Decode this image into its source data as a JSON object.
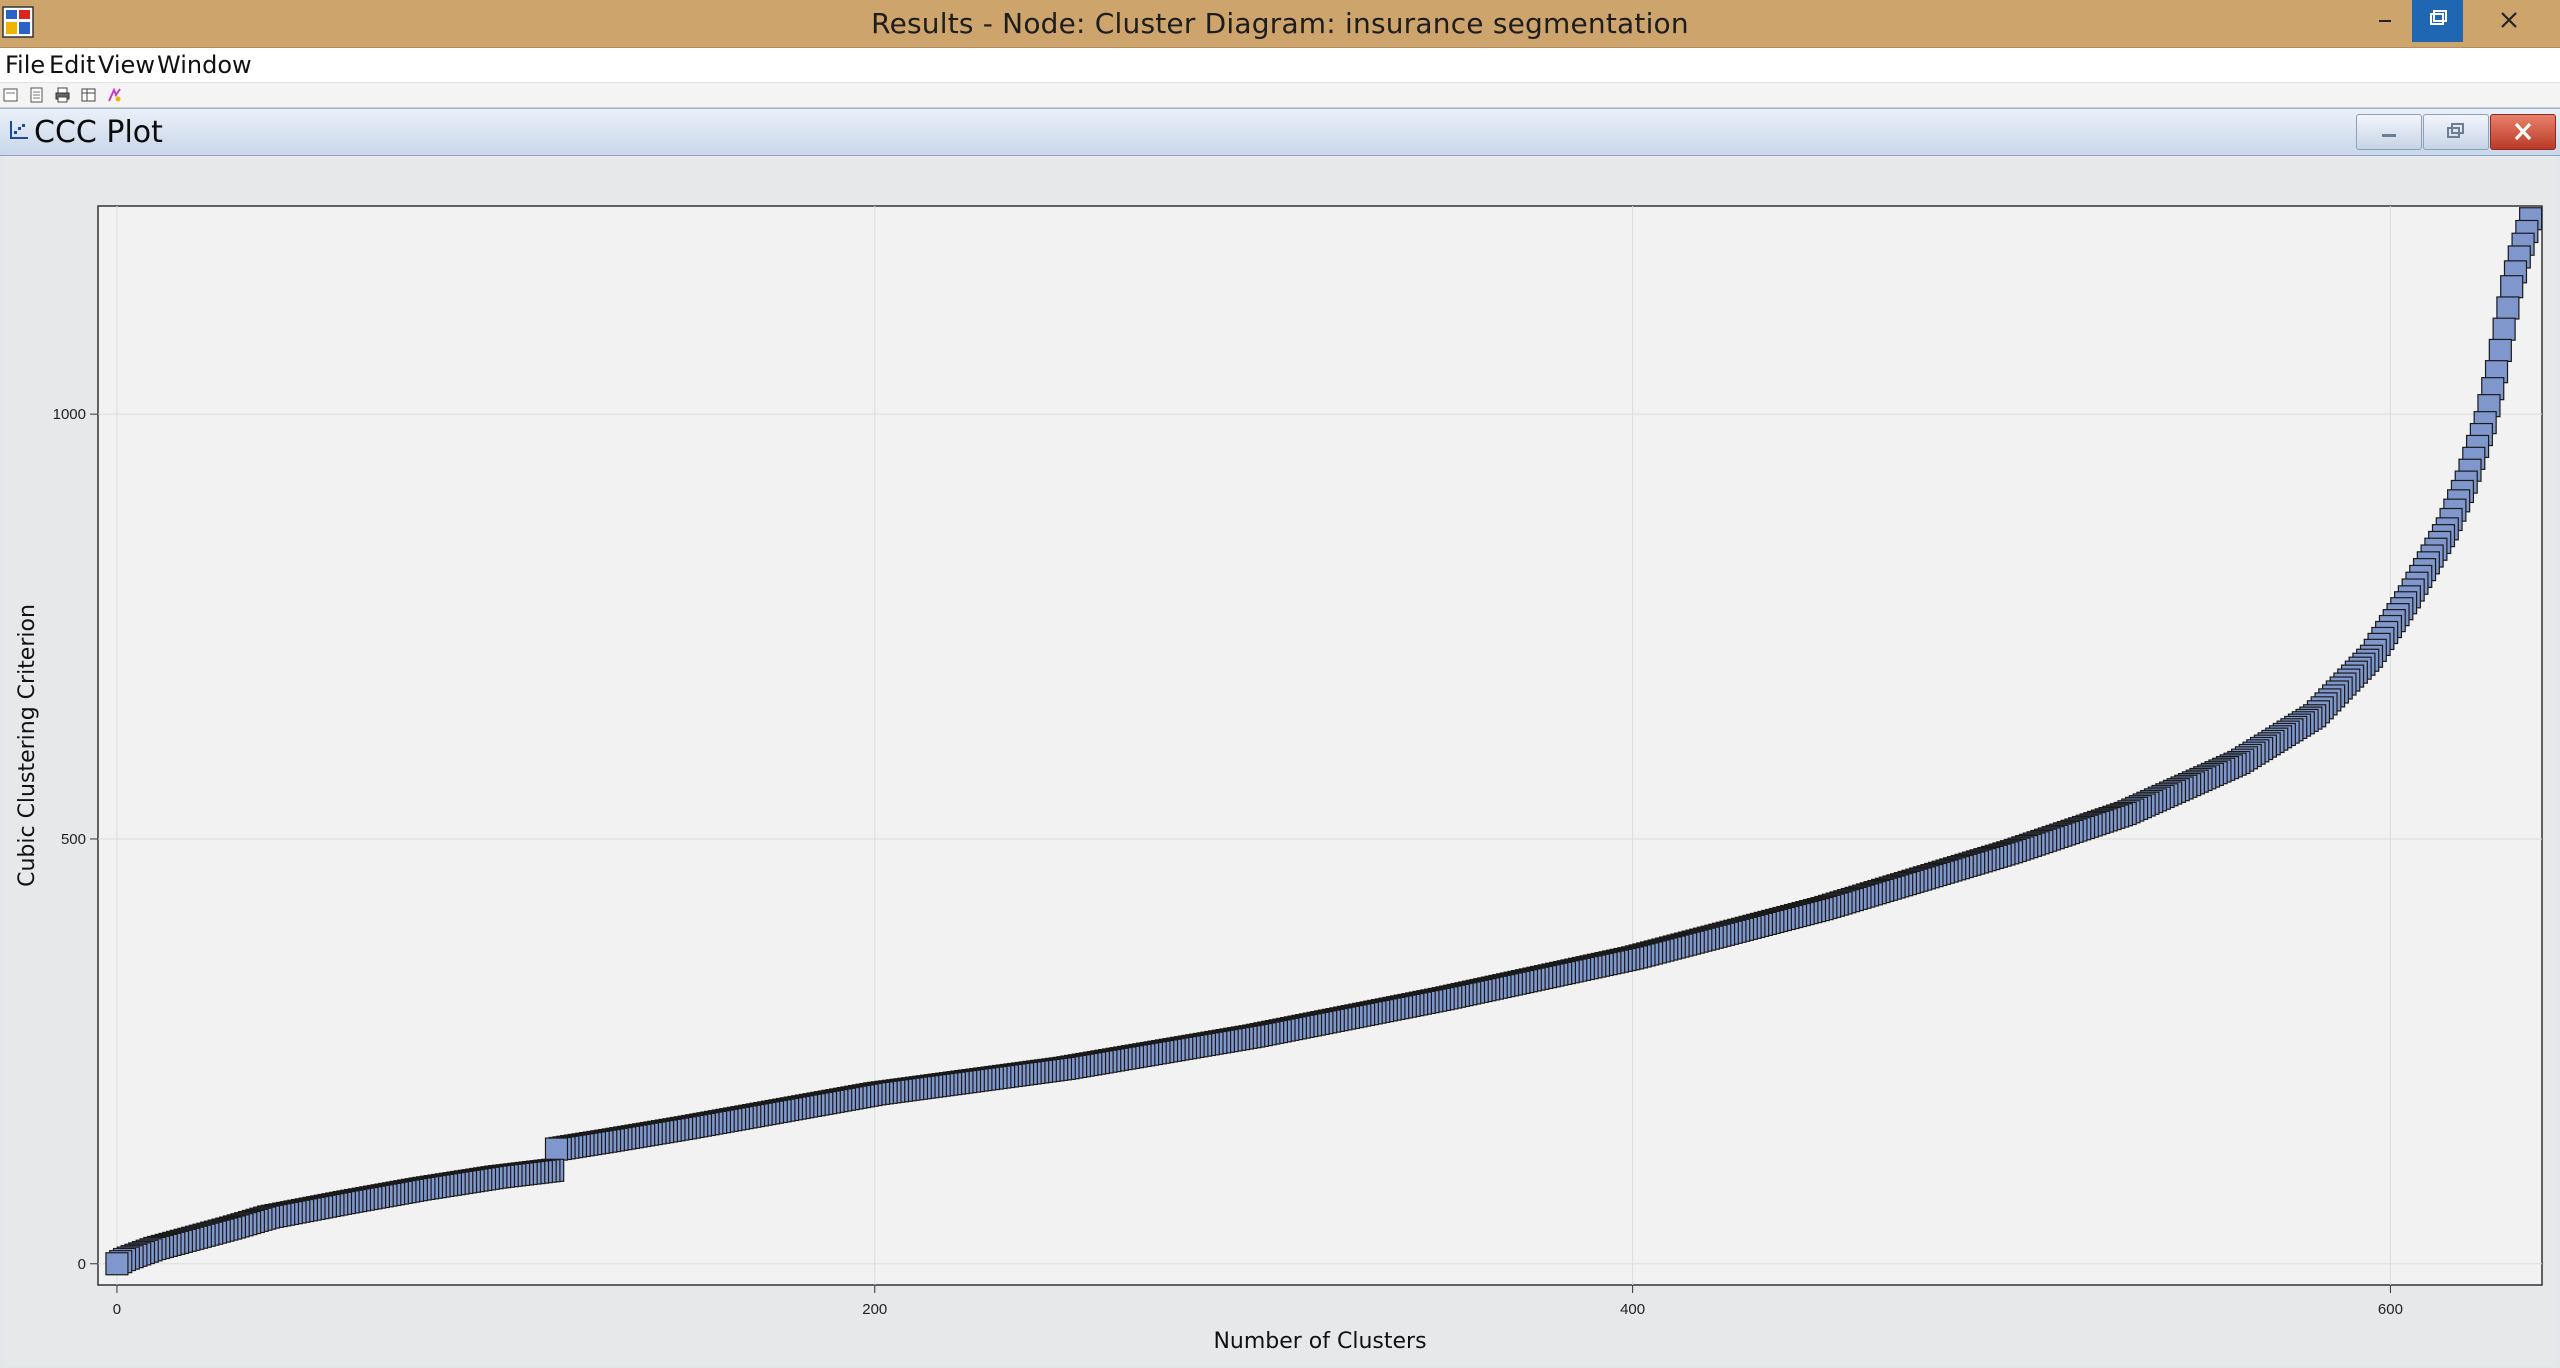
{
  "window": {
    "title": "Results - Node: Cluster  Diagram: insurance segmentation"
  },
  "menu": {
    "items": [
      "File",
      "Edit",
      "View",
      "Window"
    ]
  },
  "toolbar": {
    "icons": [
      "page-setup-icon",
      "copy-icon",
      "print-icon",
      "table-icon",
      "explore-icon"
    ]
  },
  "frame": {
    "title": "CCC Plot"
  },
  "colors": {
    "marker_fill": "#7f97cc",
    "marker_stroke": "#1a1a1a",
    "plot_bg": "#f2f2f2"
  },
  "chart_data": {
    "type": "scatter",
    "xlabel": "Number of Clusters",
    "ylabel": "Cubic Clustering Criterion",
    "xlim": [
      -5,
      640
    ],
    "ylim": [
      -25,
      1245
    ],
    "xticks": [
      0,
      200,
      400,
      600
    ],
    "yticks": [
      0,
      500,
      1000
    ],
    "grid": true,
    "marker": "square",
    "curve_anchors": [
      [
        0,
        0
      ],
      [
        2,
        5
      ],
      [
        5,
        10
      ],
      [
        10,
        18
      ],
      [
        20,
        30
      ],
      [
        30,
        42
      ],
      [
        40,
        55
      ],
      [
        60,
        72
      ],
      [
        80,
        88
      ],
      [
        100,
        102
      ],
      [
        115,
        110
      ],
      [
        116,
        135
      ],
      [
        130,
        145
      ],
      [
        150,
        160
      ],
      [
        200,
        200
      ],
      [
        250,
        230
      ],
      [
        300,
        268
      ],
      [
        350,
        312
      ],
      [
        400,
        360
      ],
      [
        450,
        418
      ],
      [
        500,
        485
      ],
      [
        530,
        530
      ],
      [
        560,
        590
      ],
      [
        580,
        645
      ],
      [
        595,
        715
      ],
      [
        605,
        785
      ],
      [
        615,
        865
      ],
      [
        620,
        920
      ],
      [
        625,
        990
      ],
      [
        628,
        1050
      ],
      [
        630,
        1100
      ],
      [
        632,
        1150
      ],
      [
        634,
        1185
      ],
      [
        636,
        1215
      ],
      [
        637,
        1230
      ]
    ]
  }
}
